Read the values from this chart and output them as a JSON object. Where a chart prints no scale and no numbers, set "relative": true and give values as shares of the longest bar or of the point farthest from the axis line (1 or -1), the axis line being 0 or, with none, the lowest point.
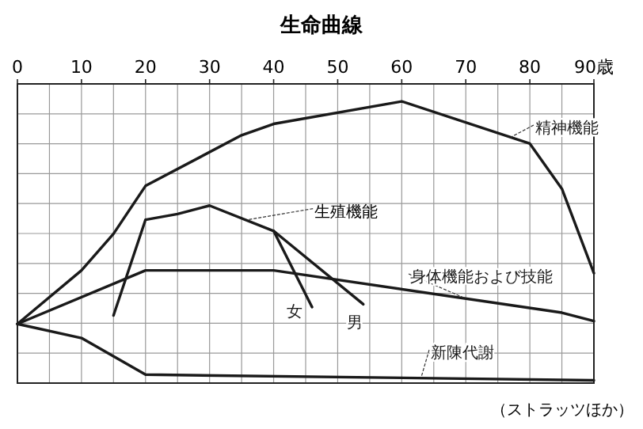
{
  "chart_data": {
    "type": "line",
    "title": "生命曲線",
    "relative": true,
    "xlim": [
      0,
      90
    ],
    "xticks": [
      0,
      10,
      20,
      30,
      40,
      50,
      60,
      70,
      80,
      {
        "value": 90,
        "label": "90歳"
      }
    ],
    "grid": true,
    "legend": false,
    "marker": "none",
    "line_style": "solid",
    "annotations": [
      {
        "text": "生殖機能",
        "x": 36,
        "y": 0.58
      },
      "（ストラッツほか）"
    ],
    "series": [
      {
        "name": "精神機能",
        "color": "#1a1a1a",
        "x": [
          0,
          10,
          15,
          20,
          35,
          40,
          60,
          80,
          85,
          90
        ],
        "values": [
          0.21,
          0.4,
          0.53,
          0.7,
          0.88,
          0.92,
          1,
          0.85,
          0.69,
          0.39
        ]
      },
      {
        "name": "女",
        "color": "#1a1a1a",
        "x": [
          15,
          20,
          25,
          30,
          40,
          46
        ],
        "values": [
          0.24,
          0.58,
          0.6,
          0.63,
          0.54,
          0.27
        ]
      },
      {
        "name": "男",
        "color": "#1a1a1a",
        "x": [
          40,
          54
        ],
        "values": [
          0.54,
          0.28
        ]
      },
      {
        "name": "身体機能および技能",
        "color": "#1a1a1a",
        "x": [
          0,
          20,
          40,
          85,
          90
        ],
        "values": [
          0.21,
          0.4,
          0.4,
          0.25,
          0.22
        ]
      },
      {
        "name": "新陳代謝",
        "color": "#1a1a1a",
        "x": [
          0,
          10,
          20,
          90
        ],
        "values": [
          0.21,
          0.16,
          0.03,
          0.01
        ]
      }
    ]
  }
}
